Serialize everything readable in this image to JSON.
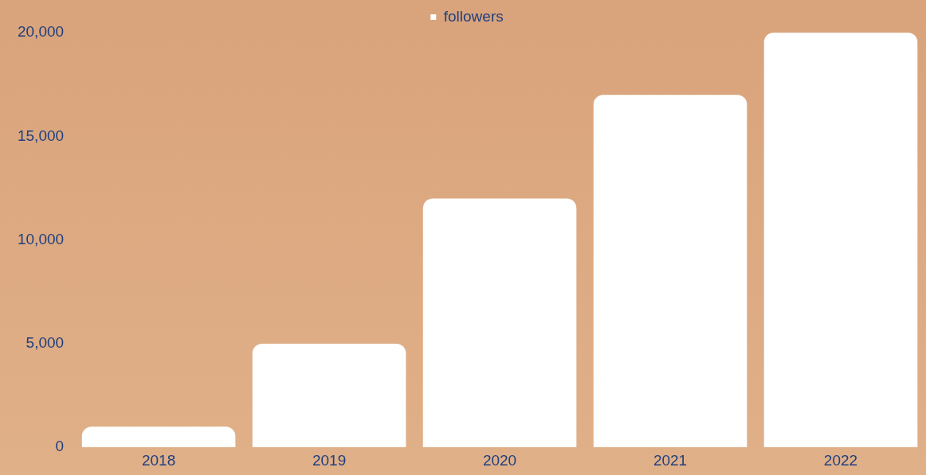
{
  "chart_data": {
    "type": "bar",
    "categories": [
      "2018",
      "2019",
      "2020",
      "2021",
      "2022"
    ],
    "series": [
      {
        "name": "followers",
        "color": "#ffffff",
        "values": [
          1000,
          5000,
          12000,
          17000,
          20000
        ]
      }
    ],
    "ylim": [
      0,
      20000
    ],
    "yticks": [
      {
        "value": 0,
        "label": "0"
      },
      {
        "value": 5000,
        "label": "5,000"
      },
      {
        "value": 10000,
        "label": "10,000"
      },
      {
        "value": 15000,
        "label": "15,000"
      },
      {
        "value": 20000,
        "label": "20,000"
      }
    ],
    "grid": false,
    "legend": "top"
  }
}
